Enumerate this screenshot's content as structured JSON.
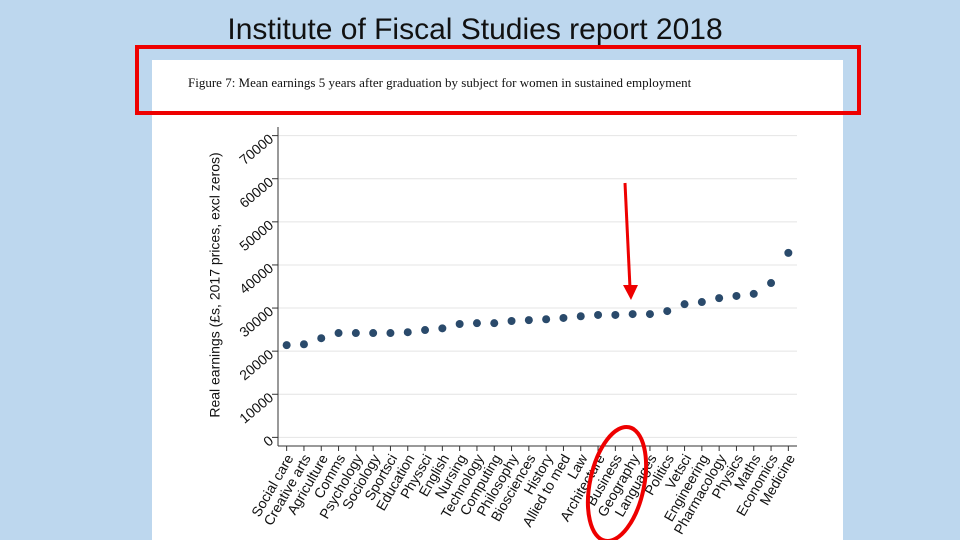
{
  "slide": {
    "title": "Institute of Fiscal Studies report 2018"
  },
  "chart_data": {
    "type": "scatter",
    "title": "Figure 7:  Mean earnings 5 years after graduation by subject for women in sustained employment",
    "y_label": "Real earnings (£s, 2017 prices, excl zeros)",
    "categories": [
      "Social care",
      "Creative arts",
      "Agriculture",
      "Comms",
      "Psychology",
      "Sociology",
      "Sportsci",
      "Education",
      "Physsci",
      "English",
      "Nursing",
      "Technology",
      "Computing",
      "Philosophy",
      "Biosciences",
      "History",
      "Allied to med",
      "Law",
      "Architecture",
      "Business",
      "Geography",
      "Languages",
      "Politics",
      "Vetsci",
      "Engineering",
      "Pharmacology",
      "Physics",
      "Maths",
      "Economics",
      "Medicine"
    ],
    "values": [
      21400,
      21600,
      23000,
      24200,
      24200,
      24200,
      24200,
      24400,
      24900,
      25300,
      26300,
      26500,
      26500,
      27000,
      27200,
      27400,
      27700,
      28100,
      28400,
      28400,
      28600,
      28600,
      29300,
      30900,
      31400,
      32300,
      32800,
      33300,
      35800,
      42800
    ],
    "color": "#2a4a6b",
    "ylim": [
      -2000,
      72000
    ],
    "yticks": [
      0,
      10000,
      20000,
      30000,
      40000,
      50000,
      60000,
      70000
    ],
    "grid": true
  }
}
